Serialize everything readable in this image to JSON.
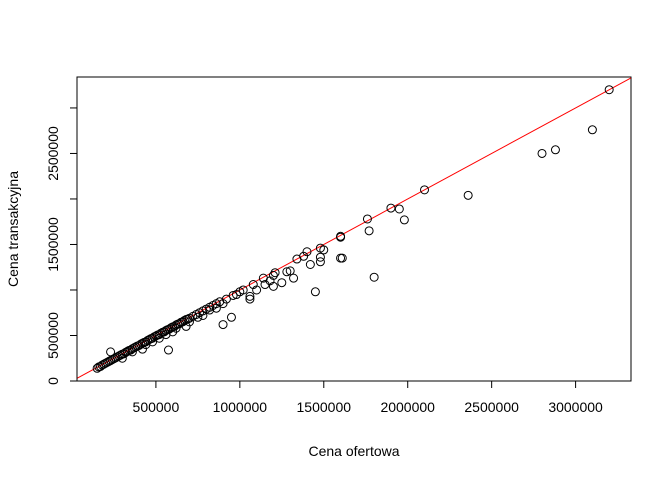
{
  "chart_data": {
    "type": "scatter",
    "title": "",
    "xlabel": "Cena ofertowa",
    "ylabel": "Cena transakcyjna",
    "xlim": [
      30000,
      3330000
    ],
    "ylim": [
      0,
      3340000
    ],
    "xticks": [
      500000,
      1000000,
      1500000,
      2000000,
      2500000,
      3000000
    ],
    "xtick_labels": [
      "500000",
      "1000000",
      "1500000",
      "2000000",
      "2500000",
      "3000000"
    ],
    "yticks": [
      0,
      500000,
      1500000,
      2500000
    ],
    "ytick_labels": [
      "0",
      "500000",
      "1500000",
      "2500000"
    ],
    "grid": false,
    "reference_line": {
      "intercept": 0,
      "slope": 1,
      "color": "#ff0000"
    },
    "marker": {
      "shape": "open-circle",
      "color": "#000000"
    },
    "series": [
      {
        "points": [
          [
            150000,
            140000
          ],
          [
            160000,
            155000
          ],
          [
            170000,
            160000
          ],
          [
            180000,
            175000
          ],
          [
            190000,
            185000
          ],
          [
            200000,
            195000
          ],
          [
            210000,
            205000
          ],
          [
            220000,
            215000
          ],
          [
            230000,
            225000
          ],
          [
            240000,
            235000
          ],
          [
            250000,
            245000
          ],
          [
            260000,
            255000
          ],
          [
            270000,
            265000
          ],
          [
            280000,
            275000
          ],
          [
            290000,
            285000
          ],
          [
            300000,
            295000
          ],
          [
            310000,
            300000
          ],
          [
            320000,
            315000
          ],
          [
            330000,
            325000
          ],
          [
            340000,
            335000
          ],
          [
            350000,
            340000
          ],
          [
            360000,
            355000
          ],
          [
            370000,
            365000
          ],
          [
            380000,
            375000
          ],
          [
            390000,
            385000
          ],
          [
            400000,
            390000
          ],
          [
            410000,
            405000
          ],
          [
            420000,
            415000
          ],
          [
            430000,
            425000
          ],
          [
            440000,
            430000
          ],
          [
            450000,
            445000
          ],
          [
            460000,
            455000
          ],
          [
            470000,
            465000
          ],
          [
            480000,
            470000
          ],
          [
            490000,
            485000
          ],
          [
            500000,
            495000
          ],
          [
            510000,
            505000
          ],
          [
            520000,
            510000
          ],
          [
            530000,
            525000
          ],
          [
            540000,
            535000
          ],
          [
            550000,
            540000
          ],
          [
            560000,
            555000
          ],
          [
            570000,
            565000
          ],
          [
            580000,
            570000
          ],
          [
            590000,
            585000
          ],
          [
            600000,
            595000
          ],
          [
            610000,
            600000
          ],
          [
            620000,
            615000
          ],
          [
            630000,
            625000
          ],
          [
            640000,
            630000
          ],
          [
            650000,
            645000
          ],
          [
            660000,
            650000
          ],
          [
            670000,
            665000
          ],
          [
            680000,
            675000
          ],
          [
            690000,
            680000
          ],
          [
            700000,
            690000
          ],
          [
            720000,
            710000
          ],
          [
            740000,
            730000
          ],
          [
            760000,
            750000
          ],
          [
            780000,
            770000
          ],
          [
            800000,
            790000
          ],
          [
            820000,
            810000
          ],
          [
            840000,
            830000
          ],
          [
            860000,
            850000
          ],
          [
            880000,
            870000
          ],
          [
            230000,
            320000
          ],
          [
            300000,
            250000
          ],
          [
            360000,
            320000
          ],
          [
            420000,
            350000
          ],
          [
            440000,
            400000
          ],
          [
            480000,
            430000
          ],
          [
            520000,
            470000
          ],
          [
            560000,
            510000
          ],
          [
            575000,
            340000
          ],
          [
            600000,
            540000
          ],
          [
            620000,
            580000
          ],
          [
            680000,
            600000
          ],
          [
            700000,
            650000
          ],
          [
            750000,
            700000
          ],
          [
            780000,
            720000
          ],
          [
            820000,
            780000
          ],
          [
            860000,
            800000
          ],
          [
            900000,
            620000
          ],
          [
            900000,
            850000
          ],
          [
            920000,
            900000
          ],
          [
            950000,
            700000
          ],
          [
            960000,
            940000
          ],
          [
            980000,
            950000
          ],
          [
            1000000,
            980000
          ],
          [
            1020000,
            1000000
          ],
          [
            1060000,
            900000
          ],
          [
            1060000,
            930000
          ],
          [
            1080000,
            1060000
          ],
          [
            1100000,
            1000000
          ],
          [
            1140000,
            1130000
          ],
          [
            1150000,
            1060000
          ],
          [
            1180000,
            1100000
          ],
          [
            1200000,
            1160000
          ],
          [
            1200000,
            1040000
          ],
          [
            1210000,
            1190000
          ],
          [
            1250000,
            1080000
          ],
          [
            1280000,
            1200000
          ],
          [
            1300000,
            1210000
          ],
          [
            1320000,
            1130000
          ],
          [
            1340000,
            1340000
          ],
          [
            1380000,
            1370000
          ],
          [
            1400000,
            1420000
          ],
          [
            1420000,
            1280000
          ],
          [
            1450000,
            980000
          ],
          [
            1480000,
            1460000
          ],
          [
            1480000,
            1310000
          ],
          [
            1480000,
            1360000
          ],
          [
            1500000,
            1440000
          ],
          [
            1600000,
            1590000
          ],
          [
            1600000,
            1580000
          ],
          [
            1600000,
            1350000
          ],
          [
            1610000,
            1350000
          ],
          [
            1760000,
            1780000
          ],
          [
            1770000,
            1650000
          ],
          [
            1800000,
            1140000
          ],
          [
            1900000,
            1900000
          ],
          [
            1950000,
            1890000
          ],
          [
            1980000,
            1770000
          ],
          [
            2100000,
            2100000
          ],
          [
            2360000,
            2040000
          ],
          [
            2800000,
            2500000
          ],
          [
            2880000,
            2540000
          ],
          [
            3100000,
            2760000
          ],
          [
            3200000,
            3200000
          ]
        ]
      }
    ]
  }
}
